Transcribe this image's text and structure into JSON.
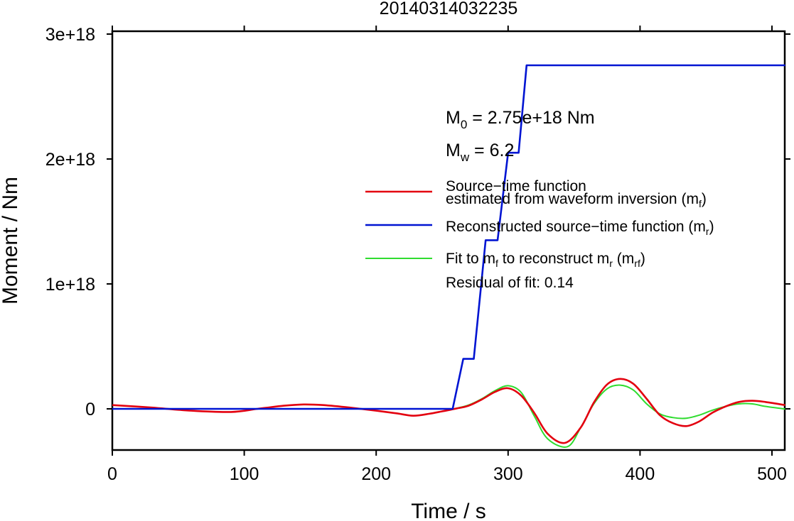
{
  "colors": {
    "stf": "#e3000f",
    "reconstructed": "#0014d2",
    "fit": "#2fdc2f",
    "axis": "#000000"
  },
  "chart_data": {
    "type": "line",
    "title": "20140314032235",
    "xlabel": "Time / s",
    "ylabel": "Moment / Nm",
    "xlim": [
      0,
      510
    ],
    "ylim": [
      -3.3e+17,
      3e+18
    ],
    "xticks": [
      0,
      100,
      200,
      300,
      400,
      500
    ],
    "xtick_labels": [
      "0",
      "100",
      "200",
      "300",
      "400",
      "500"
    ],
    "yticks": [
      0,
      1e+18,
      2e+18,
      3e+18
    ],
    "ytick_labels": [
      "0",
      "1e+18",
      "2e+18",
      "3e+18"
    ],
    "grid": false,
    "annotations": {
      "m0": {
        "sym": "M",
        "sub": "0",
        "rest": " = 2.75e+18 Nm"
      },
      "mw": {
        "sym": "M",
        "sub": "w",
        "rest": " = 6.2"
      },
      "residual": "Residual of fit: 0.14"
    },
    "legend": {
      "position": "right",
      "stf_line1": "Source−time function",
      "stf_line2_pre": "estimated from waveform inversion (m",
      "stf_line2_sub": "f",
      "stf_line2_post": ")",
      "rec_pre": "Reconstructed source−time function (m",
      "rec_sub": "r",
      "rec_post": ")",
      "fit_a": "Fit to m",
      "fit_a_sub": "f",
      "fit_b": " to reconstruct m",
      "fit_b_sub": "r",
      "fit_c": " (m",
      "fit_c_sub": "rf",
      "fit_d": ")"
    },
    "series": [
      {
        "key": "stf",
        "x": [
          0,
          30,
          60,
          90,
          110,
          130,
          145,
          160,
          180,
          200,
          215,
          228,
          240,
          250,
          260,
          270,
          280,
          290,
          300,
          310,
          320,
          330,
          343,
          355,
          365,
          375,
          385,
          395,
          405,
          415,
          425,
          435,
          445,
          455,
          465,
          475,
          485,
          495,
          510
        ],
        "y": [
          3e+16,
          1e+16,
          -1.5e+16,
          -2.5e+16,
          0,
          2.5e+16,
          3.5e+16,
          3e+16,
          1e+16,
          -1.5e+16,
          -3.5e+16,
          -5.5e+16,
          -4e+16,
          -2e+16,
          1000000000000000.0,
          2.5e+16,
          7.5e+16,
          1.35e+17,
          1.65e+17,
          1.05e+17,
          -3.5e+16,
          -2e+17,
          -2.73e+17,
          -1.5e+17,
          5e+16,
          1.95e+17,
          2.4e+17,
          2e+17,
          8e+16,
          -5e+16,
          -1.15e+17,
          -1.38e+17,
          -1e+17,
          -3e+16,
          2e+16,
          5.5e+16,
          6.5e+16,
          5.5e+16,
          3e+16
        ]
      },
      {
        "key": "reconstructed",
        "x": [
          0,
          258,
          266,
          274,
          283,
          292,
          300,
          308,
          314,
          510
        ],
        "y": [
          0,
          0,
          4e+17,
          4e+17,
          1.35e+18,
          1.35e+18,
          2.05e+18,
          2.05e+18,
          2.75e+18,
          2.75e+18
        ]
      },
      {
        "key": "fit",
        "x": [
          260,
          270,
          280,
          290,
          300,
          310,
          320,
          330,
          345,
          355,
          365,
          375,
          385,
          395,
          405,
          415,
          425,
          435,
          445,
          455,
          465,
          475,
          485,
          495,
          510
        ],
        "y": [
          3000000000000000.0,
          3e+16,
          8e+16,
          1.45e+17,
          1.85e+17,
          1.3e+17,
          -6e+16,
          -2.4e+17,
          -3.03e+17,
          -1.5e+17,
          4e+16,
          1.6e+17,
          1.9e+17,
          1.5e+17,
          4e+16,
          -4e+16,
          -7e+16,
          -7.5e+16,
          -5e+16,
          -1e+16,
          2e+16,
          4e+16,
          4e+16,
          2e+16,
          -1000000000000000.0
        ]
      }
    ]
  }
}
